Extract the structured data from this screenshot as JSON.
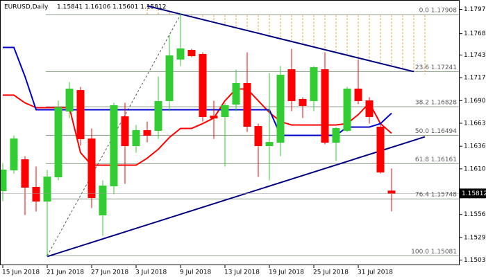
{
  "chart_data": {
    "type": "candlestick",
    "title": "EURUSD,Daily",
    "info": "1.15841 1.16106 1.15601 1.15812",
    "ylim": [
      1.1497,
      1.1808
    ],
    "yticks": [
      {
        "value": 1.1797,
        "label": "1.17970"
      },
      {
        "value": 1.17685,
        "label": "1.17685"
      },
      {
        "value": 1.17435,
        "label": "1.17435"
      },
      {
        "value": 1.1717,
        "label": "1.17170"
      },
      {
        "value": 1.169,
        "label": "1.16900"
      },
      {
        "value": 1.16635,
        "label": "1.16635"
      },
      {
        "value": 1.16365,
        "label": "1.16365"
      },
      {
        "value": 1.161,
        "label": "1.16100"
      },
      {
        "value": 1.15565,
        "label": "1.15565"
      },
      {
        "value": 1.15295,
        "label": "1.15295"
      },
      {
        "value": 1.1503,
        "label": "1.15030"
      }
    ],
    "xticks": [
      {
        "value": 0,
        "label": "15 Jun 2018"
      },
      {
        "value": 4,
        "label": "21 Jun 2018"
      },
      {
        "value": 8,
        "label": "27 Jun 2018"
      },
      {
        "value": 12,
        "label": "3 Jul 2018"
      },
      {
        "value": 16,
        "label": "9 Jul 2018"
      },
      {
        "value": 20,
        "label": "13 Jul 2018"
      },
      {
        "value": 24,
        "label": "19 Jul 2018"
      },
      {
        "value": 28,
        "label": "25 Jul 2018"
      },
      {
        "value": 32,
        "label": "31 Jul 2018"
      }
    ],
    "up_color": "#32cd32",
    "down_color": "#ff0000",
    "candles": [
      [
        1.15843,
        1.16168,
        1.15721,
        1.16087
      ],
      [
        1.16087,
        1.16493,
        1.16046,
        1.16452
      ],
      [
        1.16208,
        1.16249,
        1.15559,
        1.15884
      ],
      [
        1.15884,
        1.16127,
        1.156,
        1.15721
      ],
      [
        1.15721,
        1.16087,
        1.15072,
        1.16005
      ],
      [
        1.16005,
        1.16899,
        1.15965,
        1.16817
      ],
      [
        1.16777,
        1.17118,
        1.16696,
        1.17037
      ],
      [
        1.1702,
        1.17061,
        1.16371,
        1.16452
      ],
      [
        1.16452,
        1.16574,
        1.1564,
        1.15762
      ],
      [
        1.15559,
        1.15965,
        1.15315,
        1.159
      ],
      [
        1.159,
        1.16874,
        1.15802,
        1.16842
      ],
      [
        1.16712,
        1.16874,
        1.15924,
        1.16371
      ],
      [
        1.16371,
        1.16614,
        1.1629,
        1.1655
      ],
      [
        1.1655,
        1.16655,
        1.16411,
        1.16493
      ],
      [
        1.1655,
        1.17183,
        1.16452,
        1.16891
      ],
      [
        1.16899,
        1.1767,
        1.16777,
        1.17426
      ],
      [
        1.17386,
        1.1793,
        1.17305,
        1.17508
      ],
      [
        1.17491,
        1.17508,
        1.1741,
        1.17426
      ],
      [
        1.17443,
        1.17467,
        1.16655,
        1.16712
      ],
      [
        1.1672,
        1.16899,
        1.16452,
        1.16696
      ],
      [
        1.16712,
        1.16874,
        1.16127,
        1.16842
      ],
      [
        1.16858,
        1.17264,
        1.16777,
        1.17102
      ],
      [
        1.17102,
        1.17467,
        1.16533,
        1.16598
      ],
      [
        1.16598,
        1.16631,
        1.16005,
        1.16371
      ],
      [
        1.16371,
        1.17223,
        1.15965,
        1.16411
      ],
      [
        1.16411,
        1.17305,
        1.16249,
        1.17199
      ],
      [
        1.17264,
        1.17508,
        1.16777,
        1.16899
      ],
      [
        1.16915,
        1.16939,
        1.16696,
        1.16842
      ],
      [
        1.16899,
        1.17305,
        1.16777,
        1.17288
      ],
      [
        1.17264,
        1.17467,
        1.16387,
        1.16411
      ],
      [
        1.16411,
        1.1659,
        1.16192,
        1.16574
      ],
      [
        1.1655,
        1.17061,
        1.16533,
        1.17037
      ],
      [
        1.17037,
        1.17386,
        1.16858,
        1.16899
      ],
      [
        1.16899,
        1.16939,
        1.16631,
        1.16712
      ],
      [
        1.1659,
        1.16614,
        1.16046,
        1.16062
      ],
      [
        1.15841,
        1.16106,
        1.15601,
        1.15812
      ]
    ],
    "series": [
      {
        "color": "#ff0000",
        "values": [
          1.16964,
          1.16964,
          1.16874,
          1.16817,
          1.16817,
          1.16817,
          1.16817,
          1.1629,
          1.16143,
          1.16143,
          1.16143,
          1.16143,
          1.16143,
          1.16225,
          1.1633,
          1.16468,
          1.16574,
          1.16574,
          1.16631,
          1.16696,
          1.16899,
          1.17037,
          1.17037,
          1.16899,
          1.16761,
          1.16655,
          1.16614,
          1.16614,
          1.16614,
          1.16614,
          1.16614,
          1.16631,
          1.16736,
          1.16874,
          1.16631,
          1.16517
        ]
      },
      {
        "color": "#0000cc",
        "values": [
          1.17524,
          1.17524,
          1.17183,
          1.16793,
          1.16793,
          1.16793,
          1.16793,
          1.16793,
          1.16793,
          1.16793,
          1.16793,
          1.16793,
          1.16793,
          1.16793,
          1.16793,
          1.16793,
          1.16793,
          1.16793,
          1.16793,
          1.16793,
          1.16793,
          1.16793,
          1.16793,
          1.16793,
          1.16793,
          1.16493,
          1.16493,
          1.16493,
          1.16493,
          1.16493,
          1.16493,
          1.1659,
          1.1659,
          1.1659,
          1.16631,
          1.16753
        ]
      }
    ],
    "trendlines": [
      {
        "color": "#000080",
        "x": [
          13,
          37
        ],
        "values": [
          1.18011,
          1.1724
        ]
      },
      {
        "color": "#000080",
        "x": [
          4,
          38
        ],
        "values": [
          1.15072,
          1.16476
        ]
      }
    ],
    "fib_levels": [
      {
        "value": 1.17908,
        "label": "0.0 1.17908"
      },
      {
        "value": 1.17241,
        "label": "23.6 1.17241"
      },
      {
        "value": 1.16828,
        "label": "38.2 1.16828"
      },
      {
        "value": 1.16494,
        "label": "50.0 1.16494"
      },
      {
        "value": 1.16161,
        "label": "61.8 1.16161"
      },
      {
        "value": 1.15748,
        "label": "76.4 1.15748"
      },
      {
        "value": 1.15081,
        "label": "100.0 1.15081"
      }
    ],
    "last_price": 1.15812
  }
}
